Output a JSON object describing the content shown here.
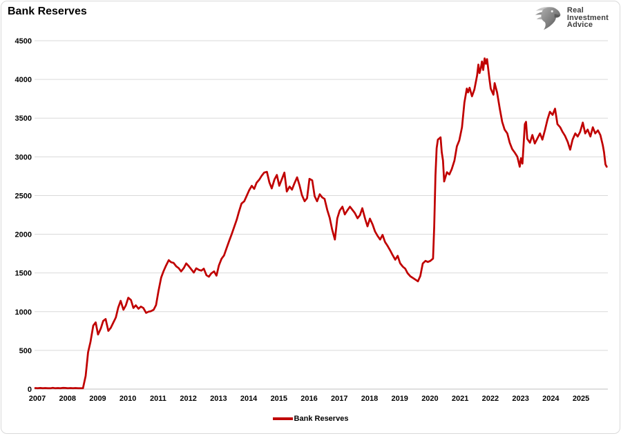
{
  "frame": {
    "background": "#ffffff",
    "border_color": "#d9d9d9"
  },
  "logo": {
    "name": "Real Investment Advice",
    "icon": "eagle-icon",
    "lines": [
      "Real",
      "Investment",
      "Advice"
    ],
    "text_color": "#3d3d3d"
  },
  "chart_data": {
    "type": "line",
    "title": "Bank Reserves",
    "xlabel": "",
    "ylabel": "",
    "x_ticks": [
      2007,
      2008,
      2009,
      2010,
      2011,
      2012,
      2013,
      2014,
      2015,
      2016,
      2017,
      2018,
      2019,
      2020,
      2021,
      2022,
      2023,
      2024,
      2025
    ],
    "y_ticks": [
      0,
      500,
      1000,
      1500,
      2000,
      2500,
      3000,
      3500,
      4000,
      4500
    ],
    "xlim": [
      2007,
      2025.95
    ],
    "ylim": [
      0,
      4500
    ],
    "grid": "horizontal-only",
    "gridline_color": "#d9d9d9",
    "axis_color": "#bfbfbf",
    "tick_label_color": "#000000",
    "legend": {
      "position": "bottom",
      "entries": [
        {
          "label": "Bank Reserves",
          "color": "#C00000"
        }
      ]
    },
    "series": [
      {
        "name": "Bank Reserves",
        "color": "#C00000",
        "stroke_width": 2.75,
        "points": [
          [
            2007.0,
            13
          ],
          [
            2007.08,
            11
          ],
          [
            2007.17,
            14
          ],
          [
            2007.25,
            11
          ],
          [
            2007.33,
            13
          ],
          [
            2007.42,
            12
          ],
          [
            2007.5,
            11
          ],
          [
            2007.58,
            16
          ],
          [
            2007.67,
            11
          ],
          [
            2007.75,
            13
          ],
          [
            2007.83,
            12
          ],
          [
            2007.92,
            15
          ],
          [
            2008.0,
            14
          ],
          [
            2008.08,
            12
          ],
          [
            2008.17,
            13
          ],
          [
            2008.25,
            11
          ],
          [
            2008.33,
            13
          ],
          [
            2008.42,
            12
          ],
          [
            2008.5,
            12
          ],
          [
            2008.58,
            11
          ],
          [
            2008.67,
            170
          ],
          [
            2008.75,
            475
          ],
          [
            2008.83,
            610
          ],
          [
            2008.92,
            820
          ],
          [
            2009.0,
            862
          ],
          [
            2009.08,
            705
          ],
          [
            2009.17,
            782
          ],
          [
            2009.25,
            880
          ],
          [
            2009.33,
            905
          ],
          [
            2009.42,
            752
          ],
          [
            2009.5,
            790
          ],
          [
            2009.58,
            855
          ],
          [
            2009.67,
            925
          ],
          [
            2009.75,
            1055
          ],
          [
            2009.83,
            1140
          ],
          [
            2009.92,
            1025
          ],
          [
            2010.0,
            1082
          ],
          [
            2010.08,
            1180
          ],
          [
            2010.17,
            1150
          ],
          [
            2010.25,
            1048
          ],
          [
            2010.33,
            1082
          ],
          [
            2010.42,
            1038
          ],
          [
            2010.5,
            1066
          ],
          [
            2010.58,
            1048
          ],
          [
            2010.67,
            985
          ],
          [
            2010.75,
            1000
          ],
          [
            2010.83,
            1006
          ],
          [
            2010.92,
            1025
          ],
          [
            2011.0,
            1085
          ],
          [
            2011.08,
            1265
          ],
          [
            2011.17,
            1440
          ],
          [
            2011.25,
            1524
          ],
          [
            2011.33,
            1594
          ],
          [
            2011.42,
            1665
          ],
          [
            2011.5,
            1638
          ],
          [
            2011.58,
            1630
          ],
          [
            2011.67,
            1585
          ],
          [
            2011.75,
            1562
          ],
          [
            2011.83,
            1520
          ],
          [
            2011.92,
            1564
          ],
          [
            2012.0,
            1624
          ],
          [
            2012.08,
            1590
          ],
          [
            2012.17,
            1545
          ],
          [
            2012.25,
            1505
          ],
          [
            2012.33,
            1560
          ],
          [
            2012.42,
            1540
          ],
          [
            2012.5,
            1530
          ],
          [
            2012.58,
            1556
          ],
          [
            2012.67,
            1470
          ],
          [
            2012.75,
            1452
          ],
          [
            2012.83,
            1495
          ],
          [
            2012.92,
            1520
          ],
          [
            2013.0,
            1465
          ],
          [
            2013.08,
            1598
          ],
          [
            2013.17,
            1685
          ],
          [
            2013.25,
            1726
          ],
          [
            2013.33,
            1815
          ],
          [
            2013.42,
            1912
          ],
          [
            2013.5,
            1996
          ],
          [
            2013.58,
            2086
          ],
          [
            2013.67,
            2186
          ],
          [
            2013.75,
            2296
          ],
          [
            2013.83,
            2396
          ],
          [
            2013.92,
            2426
          ],
          [
            2014.0,
            2496
          ],
          [
            2014.08,
            2566
          ],
          [
            2014.17,
            2626
          ],
          [
            2014.25,
            2586
          ],
          [
            2014.33,
            2666
          ],
          [
            2014.42,
            2706
          ],
          [
            2014.5,
            2756
          ],
          [
            2014.58,
            2796
          ],
          [
            2014.67,
            2806
          ],
          [
            2014.75,
            2672
          ],
          [
            2014.83,
            2592
          ],
          [
            2014.92,
            2706
          ],
          [
            2015.0,
            2766
          ],
          [
            2015.08,
            2626
          ],
          [
            2015.17,
            2716
          ],
          [
            2015.25,
            2796
          ],
          [
            2015.33,
            2552
          ],
          [
            2015.42,
            2616
          ],
          [
            2015.5,
            2576
          ],
          [
            2015.58,
            2656
          ],
          [
            2015.67,
            2736
          ],
          [
            2015.75,
            2632
          ],
          [
            2015.83,
            2506
          ],
          [
            2015.92,
            2426
          ],
          [
            2016.0,
            2466
          ],
          [
            2016.08,
            2716
          ],
          [
            2016.17,
            2696
          ],
          [
            2016.25,
            2492
          ],
          [
            2016.33,
            2426
          ],
          [
            2016.42,
            2516
          ],
          [
            2016.5,
            2476
          ],
          [
            2016.58,
            2456
          ],
          [
            2016.67,
            2312
          ],
          [
            2016.75,
            2212
          ],
          [
            2016.83,
            2062
          ],
          [
            2016.92,
            1932
          ],
          [
            2017.0,
            2206
          ],
          [
            2017.08,
            2306
          ],
          [
            2017.17,
            2356
          ],
          [
            2017.25,
            2256
          ],
          [
            2017.33,
            2306
          ],
          [
            2017.42,
            2356
          ],
          [
            2017.5,
            2316
          ],
          [
            2017.58,
            2276
          ],
          [
            2017.67,
            2206
          ],
          [
            2017.75,
            2246
          ],
          [
            2017.83,
            2336
          ],
          [
            2017.92,
            2202
          ],
          [
            2018.0,
            2102
          ],
          [
            2018.08,
            2202
          ],
          [
            2018.17,
            2126
          ],
          [
            2018.25,
            2036
          ],
          [
            2018.33,
            1982
          ],
          [
            2018.42,
            1932
          ],
          [
            2018.5,
            1992
          ],
          [
            2018.58,
            1902
          ],
          [
            2018.67,
            1846
          ],
          [
            2018.75,
            1792
          ],
          [
            2018.83,
            1732
          ],
          [
            2018.92,
            1672
          ],
          [
            2019.0,
            1722
          ],
          [
            2019.08,
            1626
          ],
          [
            2019.17,
            1582
          ],
          [
            2019.25,
            1556
          ],
          [
            2019.33,
            1496
          ],
          [
            2019.42,
            1456
          ],
          [
            2019.5,
            1436
          ],
          [
            2019.58,
            1416
          ],
          [
            2019.67,
            1392
          ],
          [
            2019.75,
            1462
          ],
          [
            2019.83,
            1622
          ],
          [
            2019.92,
            1656
          ],
          [
            2020.0,
            1642
          ],
          [
            2020.08,
            1656
          ],
          [
            2020.17,
            1686
          ],
          [
            2020.21,
            2100
          ],
          [
            2020.25,
            2760
          ],
          [
            2020.29,
            3110
          ],
          [
            2020.33,
            3222
          ],
          [
            2020.42,
            3252
          ],
          [
            2020.46,
            3060
          ],
          [
            2020.5,
            2952
          ],
          [
            2020.54,
            2682
          ],
          [
            2020.63,
            2802
          ],
          [
            2020.71,
            2772
          ],
          [
            2020.79,
            2842
          ],
          [
            2020.88,
            2952
          ],
          [
            2020.96,
            3136
          ],
          [
            2021.04,
            3212
          ],
          [
            2021.13,
            3382
          ],
          [
            2021.21,
            3702
          ],
          [
            2021.29,
            3882
          ],
          [
            2021.33,
            3832
          ],
          [
            2021.38,
            3892
          ],
          [
            2021.46,
            3782
          ],
          [
            2021.54,
            3872
          ],
          [
            2021.63,
            4052
          ],
          [
            2021.67,
            4192
          ],
          [
            2021.71,
            4082
          ],
          [
            2021.75,
            4142
          ],
          [
            2021.79,
            4232
          ],
          [
            2021.83,
            4122
          ],
          [
            2021.88,
            4272
          ],
          [
            2021.92,
            4202
          ],
          [
            2021.96,
            4262
          ],
          [
            2022.04,
            4002
          ],
          [
            2022.08,
            3882
          ],
          [
            2022.17,
            3802
          ],
          [
            2022.21,
            3952
          ],
          [
            2022.29,
            3832
          ],
          [
            2022.38,
            3622
          ],
          [
            2022.46,
            3452
          ],
          [
            2022.54,
            3352
          ],
          [
            2022.63,
            3302
          ],
          [
            2022.71,
            3182
          ],
          [
            2022.79,
            3102
          ],
          [
            2022.88,
            3052
          ],
          [
            2022.96,
            3002
          ],
          [
            2023.04,
            2872
          ],
          [
            2023.08,
            2982
          ],
          [
            2023.13,
            2912
          ],
          [
            2023.21,
            3422
          ],
          [
            2023.25,
            3452
          ],
          [
            2023.29,
            3232
          ],
          [
            2023.38,
            3182
          ],
          [
            2023.46,
            3282
          ],
          [
            2023.54,
            3172
          ],
          [
            2023.63,
            3242
          ],
          [
            2023.71,
            3302
          ],
          [
            2023.79,
            3222
          ],
          [
            2023.88,
            3352
          ],
          [
            2023.96,
            3482
          ],
          [
            2024.04,
            3582
          ],
          [
            2024.13,
            3542
          ],
          [
            2024.21,
            3622
          ],
          [
            2024.29,
            3422
          ],
          [
            2024.38,
            3382
          ],
          [
            2024.46,
            3322
          ],
          [
            2024.54,
            3272
          ],
          [
            2024.63,
            3192
          ],
          [
            2024.71,
            3092
          ],
          [
            2024.79,
            3222
          ],
          [
            2024.88,
            3302
          ],
          [
            2024.96,
            3262
          ],
          [
            2025.04,
            3322
          ],
          [
            2025.13,
            3442
          ],
          [
            2025.21,
            3302
          ],
          [
            2025.29,
            3352
          ],
          [
            2025.38,
            3262
          ],
          [
            2025.46,
            3382
          ],
          [
            2025.54,
            3302
          ],
          [
            2025.63,
            3342
          ],
          [
            2025.71,
            3282
          ],
          [
            2025.79,
            3152
          ],
          [
            2025.83,
            3062
          ],
          [
            2025.88,
            2902
          ],
          [
            2025.92,
            2872
          ]
        ]
      }
    ]
  }
}
